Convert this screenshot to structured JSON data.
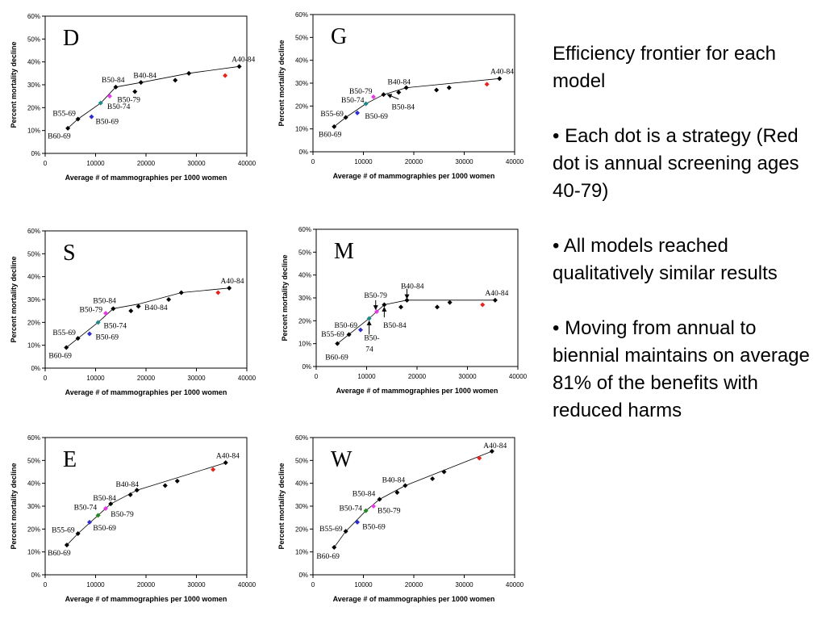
{
  "common": {
    "ylabel": "Percent mortality decline",
    "xlabel": "Average # of mammographies per 1000 women",
    "yticks": [
      "0%",
      "10%",
      "20%",
      "30%",
      "40%",
      "50%",
      "60%"
    ],
    "xticks": [
      "0",
      "10000",
      "20000",
      "30000",
      "40000"
    ],
    "colors": {
      "black": "#000000",
      "red": "#e8221d",
      "blue": "#2b2bd1",
      "teal": "#1a8a8a",
      "magenta": "#e63ae6",
      "green": "#1f8a1f"
    }
  },
  "notes": {
    "title": "Efficiency frontier for each model",
    "b1": "• Each dot is a strategy (Red dot is annual screening ages 40-79)",
    "b2": "• All models reached qualitatively similar results",
    "b3": "• Moving from annual to biennial maintains on average 81% of the benefits with reduced harms"
  },
  "chart_data": [
    {
      "panel": "D",
      "type": "scatter",
      "xlim": [
        0,
        40000
      ],
      "ylim": [
        0,
        60
      ],
      "frontier": [
        [
          4500,
          11
        ],
        [
          6500,
          15
        ],
        [
          11000,
          22
        ],
        [
          14000,
          29
        ],
        [
          19000,
          31
        ],
        [
          28500,
          35
        ],
        [
          38500,
          38
        ]
      ],
      "points": [
        {
          "x": 4500,
          "y": 11,
          "c": "black"
        },
        {
          "x": 6500,
          "y": 15,
          "c": "black"
        },
        {
          "x": 9200,
          "y": 16,
          "c": "blue"
        },
        {
          "x": 11000,
          "y": 22,
          "c": "teal"
        },
        {
          "x": 12800,
          "y": 25,
          "c": "magenta"
        },
        {
          "x": 14000,
          "y": 29,
          "c": "black"
        },
        {
          "x": 17800,
          "y": 27,
          "c": "black"
        },
        {
          "x": 19000,
          "y": 31,
          "c": "black"
        },
        {
          "x": 25800,
          "y": 32,
          "c": "black"
        },
        {
          "x": 28500,
          "y": 35,
          "c": "black"
        },
        {
          "x": 35700,
          "y": 34,
          "c": "red"
        },
        {
          "x": 38500,
          "y": 38,
          "c": "black"
        }
      ],
      "labels": [
        {
          "t": "A40-84",
          "x": 37000,
          "y": 40
        },
        {
          "t": "B40-84",
          "x": 17500,
          "y": 33
        },
        {
          "t": "B50-84",
          "x": 11200,
          "y": 31
        },
        {
          "t": "B50-79",
          "x": 14300,
          "y": 22.5
        },
        {
          "t": "B50-74",
          "x": 12300,
          "y": 19.5
        },
        {
          "t": "B55-69",
          "x": 1500,
          "y": 16.5
        },
        {
          "t": "B50-69",
          "x": 10000,
          "y": 12.8
        },
        {
          "t": "B60-69",
          "x": 500,
          "y": 6.5
        }
      ]
    },
    {
      "panel": "G",
      "type": "scatter",
      "xlim": [
        0,
        40000
      ],
      "ylim": [
        0,
        60
      ],
      "frontier": [
        [
          4200,
          11
        ],
        [
          6500,
          15
        ],
        [
          10500,
          21
        ],
        [
          14000,
          25
        ],
        [
          18500,
          28
        ],
        [
          37000,
          32
        ]
      ],
      "points": [
        {
          "x": 4200,
          "y": 11,
          "c": "black"
        },
        {
          "x": 6500,
          "y": 15,
          "c": "black"
        },
        {
          "x": 8800,
          "y": 17,
          "c": "blue"
        },
        {
          "x": 10500,
          "y": 21,
          "c": "teal"
        },
        {
          "x": 12000,
          "y": 24,
          "c": "magenta"
        },
        {
          "x": 14000,
          "y": 25,
          "c": "black"
        },
        {
          "x": 17000,
          "y": 26,
          "c": "black"
        },
        {
          "x": 18500,
          "y": 28,
          "c": "black"
        },
        {
          "x": 24500,
          "y": 27,
          "c": "black"
        },
        {
          "x": 27000,
          "y": 28,
          "c": "black"
        },
        {
          "x": 34500,
          "y": 29.5,
          "c": "red"
        },
        {
          "x": 37000,
          "y": 32,
          "c": "black"
        }
      ],
      "labels": [
        {
          "t": "A40-84",
          "x": 35200,
          "y": 34
        },
        {
          "t": "B40-84",
          "x": 14800,
          "y": 29.5
        },
        {
          "t": "B50-79",
          "x": 7200,
          "y": 25.5
        },
        {
          "t": "B50-74",
          "x": 5600,
          "y": 21.5
        },
        {
          "t": "B50-84",
          "x": 15600,
          "y": 18.5
        },
        {
          "t": "B55-69",
          "x": 1500,
          "y": 15.5
        },
        {
          "t": "B50-69",
          "x": 10300,
          "y": 14.5
        },
        {
          "t": "B60-69",
          "x": 1100,
          "y": 6.5
        }
      ],
      "arrows": [
        {
          "from": [
            17000,
            23
          ],
          "to": [
            14800,
            25
          ]
        }
      ]
    },
    {
      "panel": "S",
      "type": "scatter",
      "xlim": [
        0,
        40000
      ],
      "ylim": [
        0,
        60
      ],
      "frontier": [
        [
          4200,
          9
        ],
        [
          6500,
          13
        ],
        [
          10500,
          20
        ],
        [
          13500,
          26
        ],
        [
          18500,
          28
        ],
        [
          27000,
          33
        ],
        [
          36500,
          35
        ]
      ],
      "points": [
        {
          "x": 4200,
          "y": 9,
          "c": "black"
        },
        {
          "x": 6500,
          "y": 13,
          "c": "black"
        },
        {
          "x": 8800,
          "y": 15,
          "c": "blue"
        },
        {
          "x": 10500,
          "y": 20,
          "c": "teal"
        },
        {
          "x": 12000,
          "y": 24,
          "c": "magenta"
        },
        {
          "x": 13500,
          "y": 26,
          "c": "black"
        },
        {
          "x": 17000,
          "y": 25,
          "c": "black"
        },
        {
          "x": 18500,
          "y": 27,
          "c": "black"
        },
        {
          "x": 24500,
          "y": 30,
          "c": "black"
        },
        {
          "x": 27000,
          "y": 33,
          "c": "black"
        },
        {
          "x": 34300,
          "y": 33,
          "c": "red"
        },
        {
          "x": 36500,
          "y": 35,
          "c": "black"
        }
      ],
      "labels": [
        {
          "t": "A40-84",
          "x": 34800,
          "y": 37
        },
        {
          "t": "B40-84",
          "x": 19700,
          "y": 25.5
        },
        {
          "t": "B50-84",
          "x": 9500,
          "y": 28.5
        },
        {
          "t": "B50-79",
          "x": 6800,
          "y": 24.5
        },
        {
          "t": "B50-74",
          "x": 11600,
          "y": 17.5
        },
        {
          "t": "B55-69",
          "x": 1500,
          "y": 14.5
        },
        {
          "t": "B50-69",
          "x": 10000,
          "y": 12.5
        },
        {
          "t": "B60-69",
          "x": 700,
          "y": 4.5
        }
      ]
    },
    {
      "panel": "M",
      "type": "scatter",
      "xlim": [
        0,
        40000
      ],
      "ylim": [
        0,
        60
      ],
      "frontier": [
        [
          4200,
          10
        ],
        [
          6500,
          14
        ],
        [
          10500,
          21
        ],
        [
          13500,
          27
        ],
        [
          18000,
          29
        ],
        [
          35500,
          29
        ]
      ],
      "points": [
        {
          "x": 4200,
          "y": 10,
          "c": "black"
        },
        {
          "x": 6500,
          "y": 14,
          "c": "black"
        },
        {
          "x": 8800,
          "y": 16,
          "c": "blue"
        },
        {
          "x": 10500,
          "y": 21,
          "c": "teal"
        },
        {
          "x": 12000,
          "y": 24,
          "c": "magenta"
        },
        {
          "x": 13500,
          "y": 27,
          "c": "black"
        },
        {
          "x": 16800,
          "y": 26,
          "c": "black"
        },
        {
          "x": 18000,
          "y": 29,
          "c": "black"
        },
        {
          "x": 24000,
          "y": 26,
          "c": "black"
        },
        {
          "x": 26500,
          "y": 28,
          "c": "black"
        },
        {
          "x": 33000,
          "y": 27,
          "c": "red"
        },
        {
          "x": 35500,
          "y": 29,
          "c": "black"
        }
      ],
      "labels": [
        {
          "t": "A40-84",
          "x": 33500,
          "y": 31
        },
        {
          "t": "B40-84",
          "x": 16800,
          "y": 34
        },
        {
          "t": "B50-79",
          "x": 9500,
          "y": 30
        },
        {
          "t": "B50-84",
          "x": 13300,
          "y": 17
        },
        {
          "t": "B50-69",
          "x": 3600,
          "y": 17
        },
        {
          "t": "B55-69",
          "x": 1000,
          "y": 13
        },
        {
          "t": "B50-",
          "x": 9500,
          "y": 11.5
        },
        {
          "t": "74",
          "x": 9800,
          "y": 6.5
        },
        {
          "t": "B60-69",
          "x": 1800,
          "y": 3
        }
      ],
      "arrows": [
        {
          "from": [
            18000,
            34
          ],
          "to": [
            18000,
            29.8
          ]
        },
        {
          "from": [
            11800,
            29
          ],
          "to": [
            11800,
            25
          ]
        },
        {
          "from": [
            13500,
            21.5
          ],
          "to": [
            13500,
            25.8
          ]
        },
        {
          "from": [
            10500,
            14
          ],
          "to": [
            10500,
            19.8
          ]
        }
      ]
    },
    {
      "panel": "E",
      "type": "scatter",
      "xlim": [
        0,
        40000
      ],
      "ylim": [
        0,
        60
      ],
      "frontier": [
        [
          4300,
          13
        ],
        [
          6500,
          18
        ],
        [
          10500,
          26
        ],
        [
          13000,
          31
        ],
        [
          18200,
          37
        ],
        [
          35800,
          49
        ]
      ],
      "points": [
        {
          "x": 4300,
          "y": 13,
          "c": "black"
        },
        {
          "x": 6500,
          "y": 18,
          "c": "black"
        },
        {
          "x": 8800,
          "y": 23,
          "c": "blue"
        },
        {
          "x": 10500,
          "y": 26,
          "c": "green"
        },
        {
          "x": 12000,
          "y": 29,
          "c": "magenta"
        },
        {
          "x": 13000,
          "y": 31,
          "c": "black"
        },
        {
          "x": 16900,
          "y": 35,
          "c": "black"
        },
        {
          "x": 18200,
          "y": 37,
          "c": "black"
        },
        {
          "x": 23800,
          "y": 39,
          "c": "black"
        },
        {
          "x": 26200,
          "y": 41,
          "c": "black"
        },
        {
          "x": 33300,
          "y": 46,
          "c": "red"
        },
        {
          "x": 35800,
          "y": 49,
          "c": "black"
        }
      ],
      "labels": [
        {
          "t": "A40-84",
          "x": 33900,
          "y": 51
        },
        {
          "t": "B40-84",
          "x": 14000,
          "y": 38.5
        },
        {
          "t": "B50-84",
          "x": 9500,
          "y": 32.5
        },
        {
          "t": "B50-74",
          "x": 5700,
          "y": 28.5
        },
        {
          "t": "B50-79",
          "x": 13000,
          "y": 25.5
        },
        {
          "t": "B55-69",
          "x": 1300,
          "y": 18.5
        },
        {
          "t": "B50-69",
          "x": 9500,
          "y": 19.5
        },
        {
          "t": "B60-69",
          "x": 500,
          "y": 8.5
        }
      ]
    },
    {
      "panel": "W",
      "type": "scatter",
      "xlim": [
        0,
        40000
      ],
      "ylim": [
        0,
        60
      ],
      "frontier": [
        [
          4200,
          12
        ],
        [
          6500,
          19
        ],
        [
          10500,
          28
        ],
        [
          13200,
          33
        ],
        [
          18300,
          39
        ],
        [
          35500,
          54
        ]
      ],
      "points": [
        {
          "x": 4200,
          "y": 12,
          "c": "black"
        },
        {
          "x": 6500,
          "y": 19,
          "c": "black"
        },
        {
          "x": 8800,
          "y": 23,
          "c": "blue"
        },
        {
          "x": 10500,
          "y": 28,
          "c": "green"
        },
        {
          "x": 12000,
          "y": 30,
          "c": "magenta"
        },
        {
          "x": 13200,
          "y": 33,
          "c": "black"
        },
        {
          "x": 16700,
          "y": 36,
          "c": "black"
        },
        {
          "x": 18300,
          "y": 39,
          "c": "black"
        },
        {
          "x": 23700,
          "y": 42,
          "c": "black"
        },
        {
          "x": 26000,
          "y": 45,
          "c": "black"
        },
        {
          "x": 33000,
          "y": 51,
          "c": "red"
        },
        {
          "x": 35500,
          "y": 54,
          "c": "black"
        }
      ],
      "labels": [
        {
          "t": "A40-84",
          "x": 33800,
          "y": 55.5
        },
        {
          "t": "B40-84",
          "x": 13700,
          "y": 40.5
        },
        {
          "t": "B50-84",
          "x": 7800,
          "y": 34.5
        },
        {
          "t": "B50-74",
          "x": 5200,
          "y": 28
        },
        {
          "t": "B50-79",
          "x": 12800,
          "y": 27
        },
        {
          "t": "B55-69",
          "x": 1300,
          "y": 19
        },
        {
          "t": "B50-69",
          "x": 9800,
          "y": 20
        },
        {
          "t": "B60-69",
          "x": 700,
          "y": 7
        }
      ]
    }
  ]
}
